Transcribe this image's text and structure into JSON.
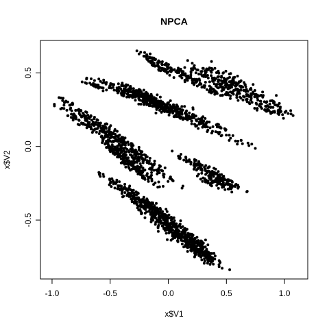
{
  "chart_data": {
    "type": "scatter",
    "title": "NPCA",
    "xlabel": "x$V1",
    "ylabel": "x$V2",
    "xlim": [
      -1.1,
      1.2
    ],
    "ylim": [
      -0.9,
      0.72
    ],
    "xticks": [
      -1.0,
      -0.5,
      0.0,
      0.5,
      1.0
    ],
    "xtick_labels": [
      "-1.0",
      "-0.5",
      "0.0",
      "0.5",
      "1.0"
    ],
    "yticks": [
      -0.5,
      0.0,
      0.5
    ],
    "ytick_labels": [
      "-0.5",
      "0.0",
      "0.5"
    ],
    "grid": false,
    "legend": "none",
    "point_color": "#000000",
    "series": [
      {
        "clusters": [
          {
            "from": [
              -0.27,
              0.65
            ],
            "to": [
              0.05,
              0.47
            ],
            "width": 0.022,
            "n": 60
          },
          {
            "from": [
              -0.22,
              0.64
            ],
            "to": [
              0.55,
              0.3
            ],
            "width": 0.028,
            "n": 110
          },
          {
            "from": [
              0.12,
              0.58
            ],
            "to": [
              1.1,
              0.19
            ],
            "width": 0.075,
            "n": 320
          },
          {
            "from": [
              -0.7,
              0.47
            ],
            "to": [
              0.55,
              0.1
            ],
            "width": 0.045,
            "n": 220
          },
          {
            "from": [
              -0.6,
              0.45
            ],
            "to": [
              0.75,
              -0.01
            ],
            "width": 0.035,
            "n": 160
          },
          {
            "from": [
              -0.8,
              0.45
            ],
            "to": [
              -0.28,
              0.33
            ],
            "width": 0.02,
            "n": 40
          },
          {
            "from": [
              -0.4,
              0.42
            ],
            "to": [
              0.1,
              0.22
            ],
            "width": 0.04,
            "n": 130
          },
          {
            "from": [
              -0.95,
              0.34
            ],
            "to": [
              0.12,
              -0.28
            ],
            "width": 0.05,
            "n": 300
          },
          {
            "from": [
              -1.02,
              0.31
            ],
            "to": [
              -0.55,
              0.06
            ],
            "width": 0.02,
            "n": 45
          },
          {
            "from": [
              -0.65,
              0.1
            ],
            "to": [
              -0.05,
              -0.28
            ],
            "width": 0.04,
            "n": 120
          },
          {
            "from": [
              -0.55,
              0.02
            ],
            "to": [
              -0.15,
              -0.24
            ],
            "width": 0.03,
            "n": 80
          },
          {
            "from": [
              0.03,
              -0.04
            ],
            "to": [
              0.7,
              -0.32
            ],
            "width": 0.035,
            "n": 140
          },
          {
            "from": [
              0.25,
              -0.2
            ],
            "to": [
              0.55,
              -0.3
            ],
            "width": 0.03,
            "n": 50
          },
          {
            "from": [
              -0.6,
              -0.18
            ],
            "to": [
              0.1,
              -0.53
            ],
            "width": 0.04,
            "n": 150
          },
          {
            "from": [
              -0.45,
              -0.25
            ],
            "to": [
              0.52,
              -0.85
            ],
            "width": 0.07,
            "n": 450
          },
          {
            "from": [
              0.05,
              -0.55
            ],
            "to": [
              0.35,
              -0.75
            ],
            "width": 0.05,
            "n": 90
          }
        ]
      }
    ]
  }
}
